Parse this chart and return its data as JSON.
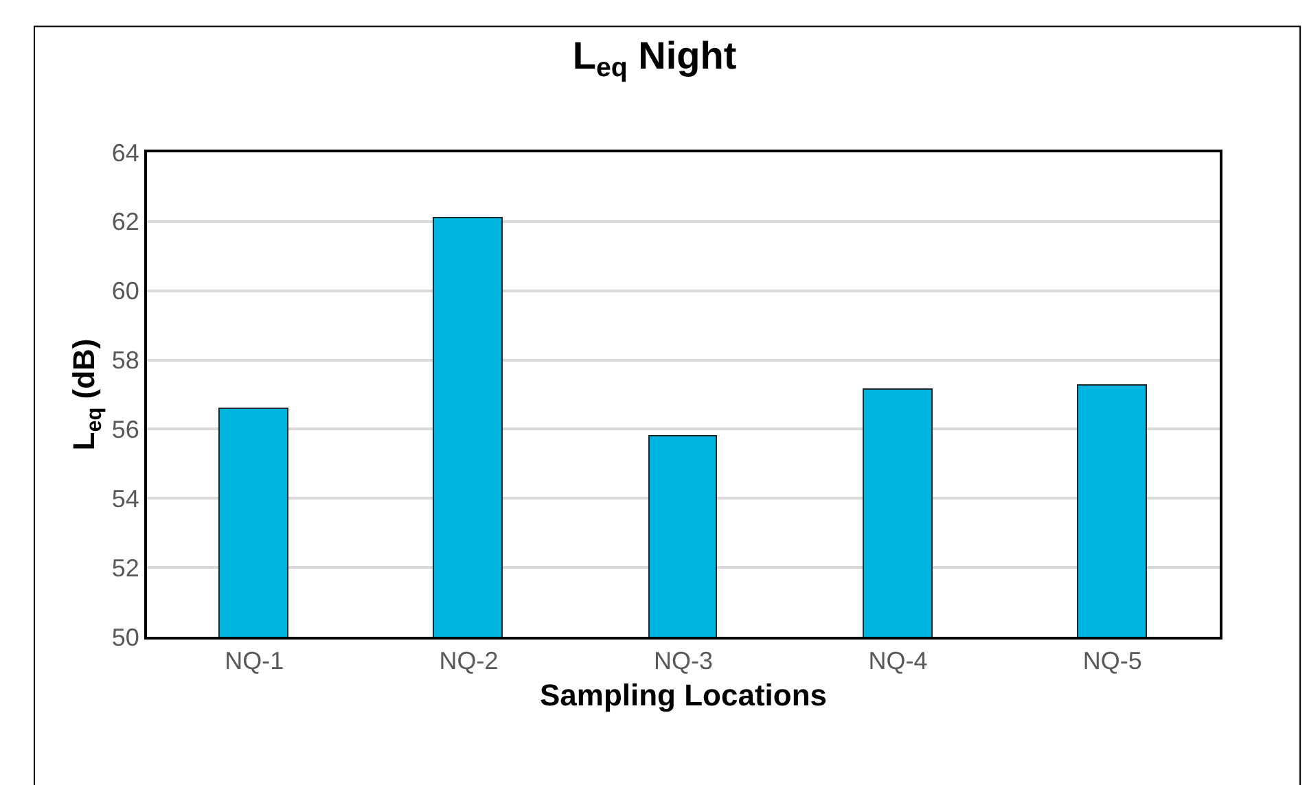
{
  "chart_data": {
    "type": "bar",
    "title": "L$_{eq}$ Night",
    "xlabel": "Sampling Locations",
    "ylabel": "L$_{eq}$ (dB)",
    "categories": [
      "NQ-1",
      "NQ-2",
      "NQ-3",
      "NQ-4",
      "NQ-5"
    ],
    "values": [
      56.6,
      62.1,
      55.8,
      57.15,
      57.25
    ],
    "color": "#00b4e0",
    "ylim": [
      50,
      64
    ],
    "yticks": [
      50,
      52,
      54,
      56,
      58,
      60,
      62,
      64
    ],
    "grid": "y",
    "legend": false
  }
}
